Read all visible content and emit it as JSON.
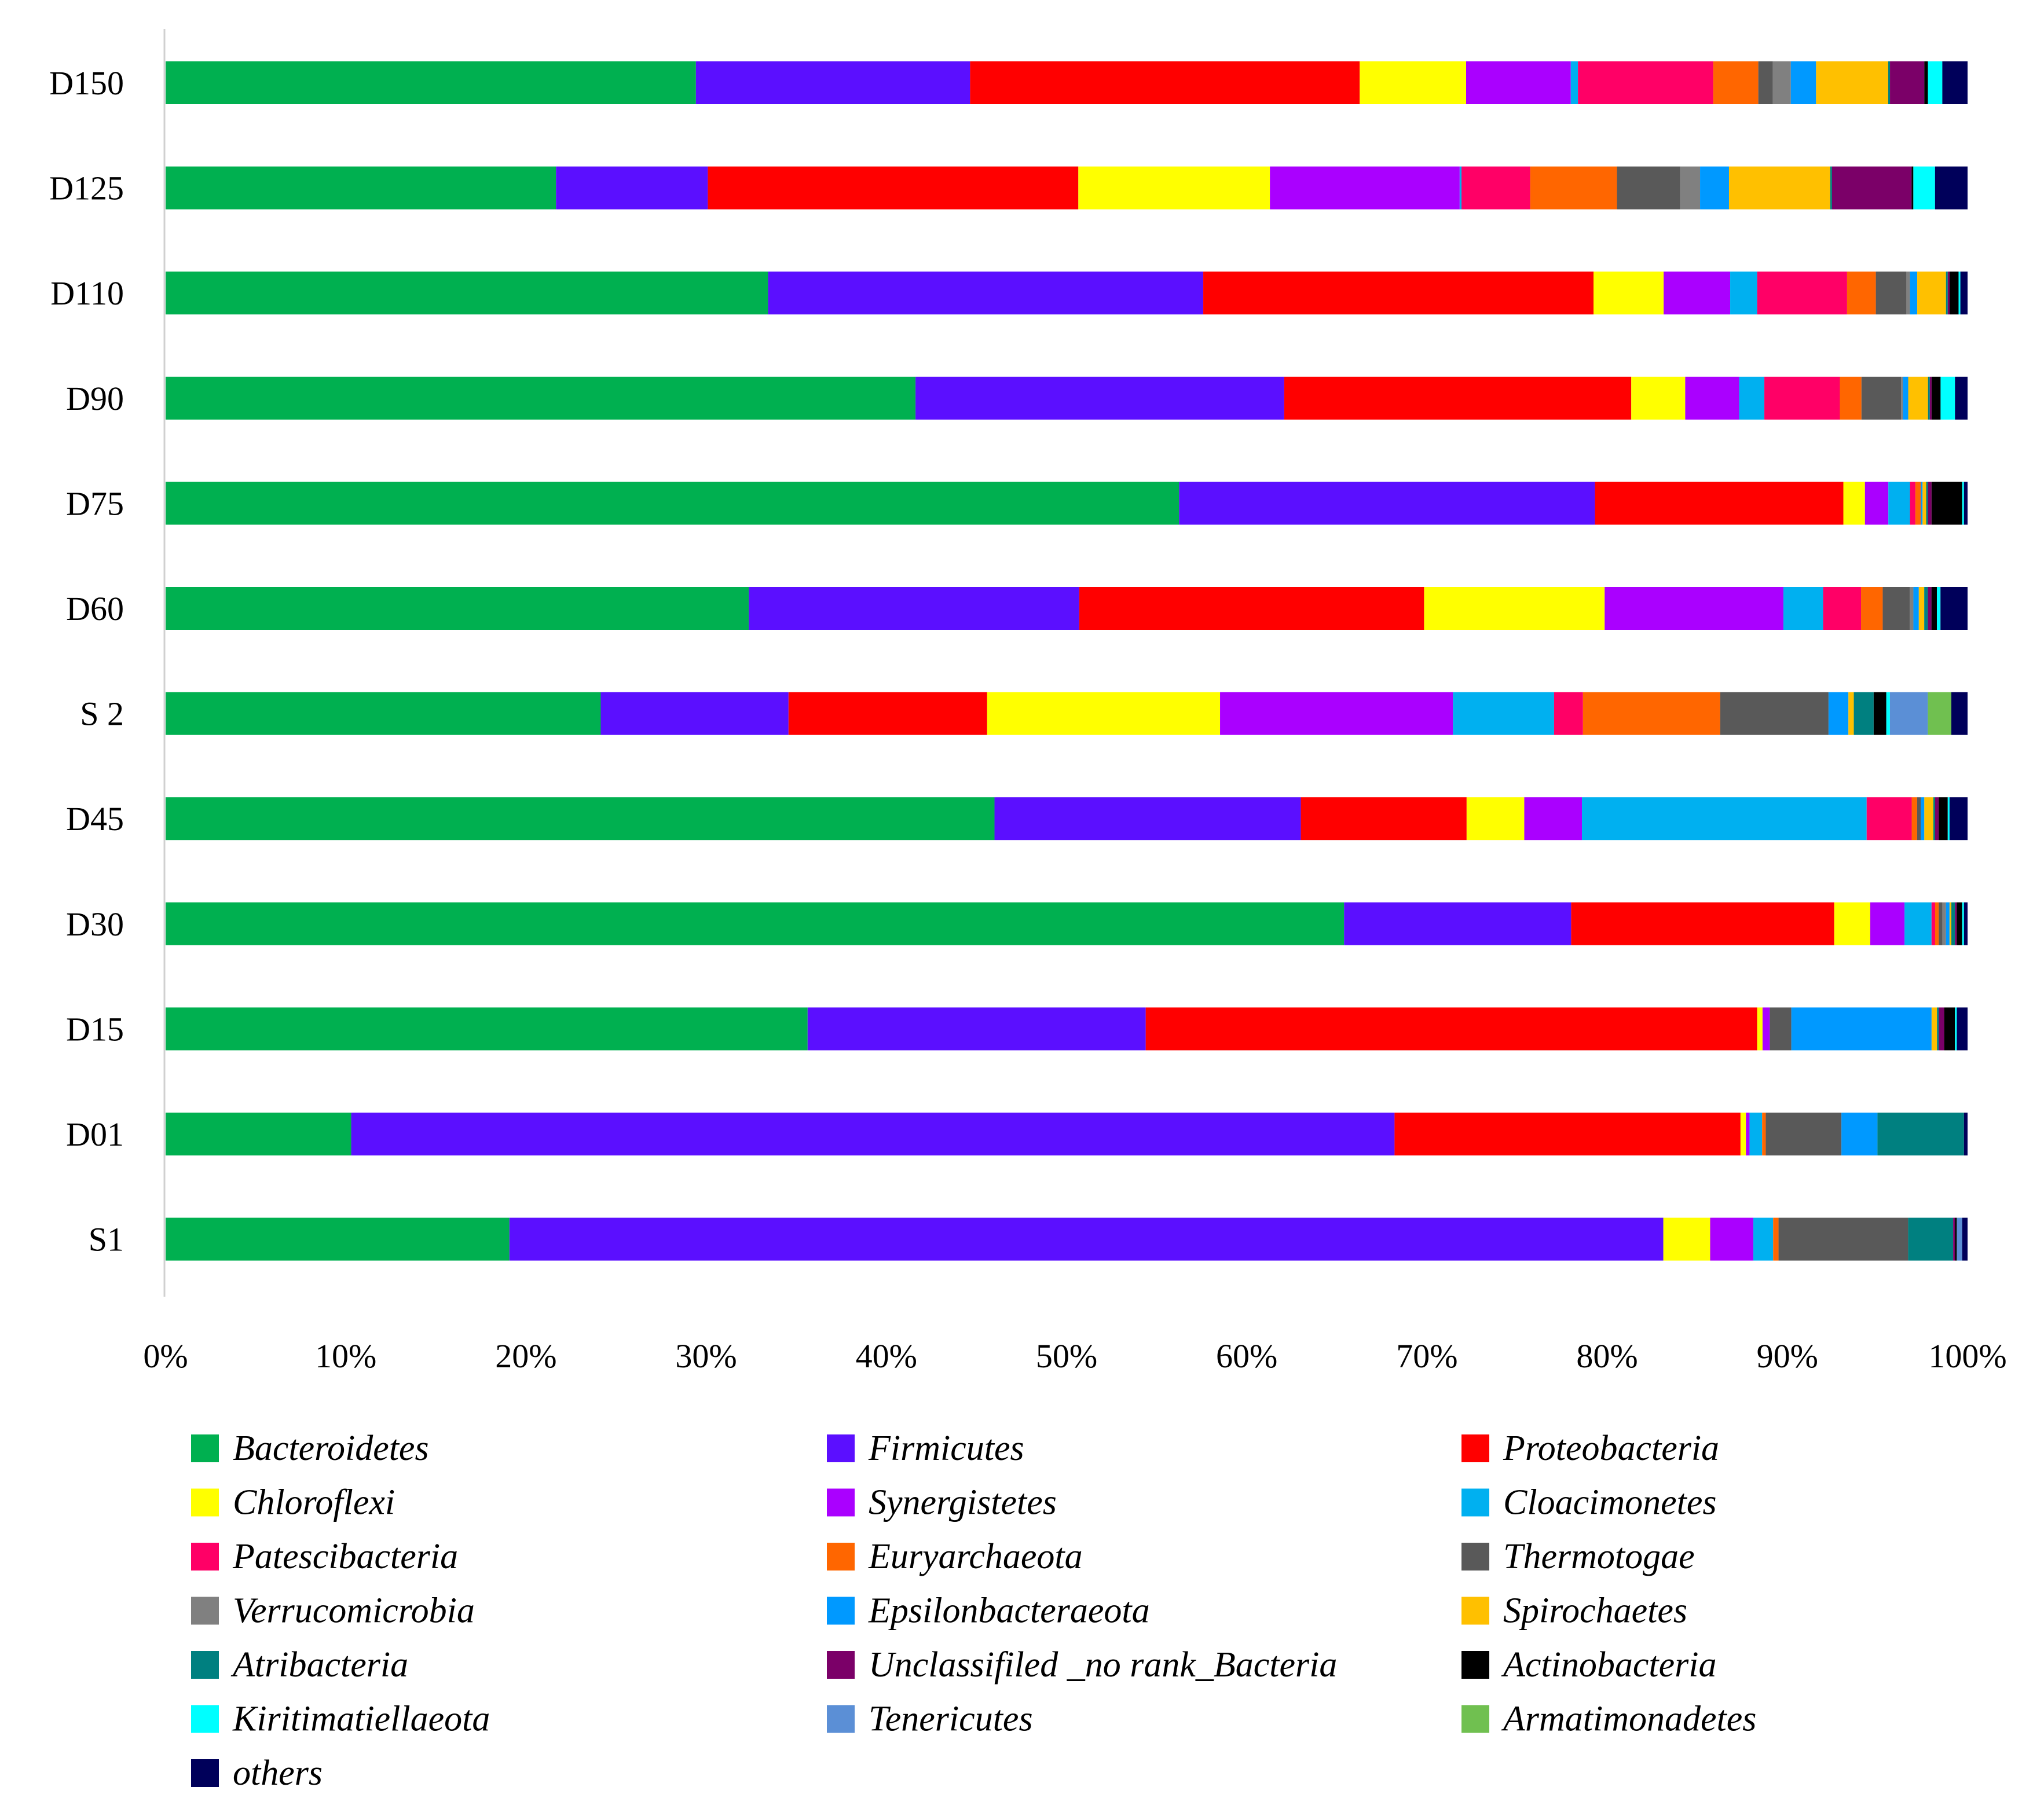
{
  "chart_data": {
    "type": "bar",
    "orientation": "horizontal",
    "stacked": "percent",
    "title": "",
    "xlabel": "",
    "ylabel": "",
    "xlim": [
      0,
      100
    ],
    "x_ticks": [
      "0%",
      "10%",
      "20%",
      "30%",
      "40%",
      "50%",
      "60%",
      "70%",
      "80%",
      "90%",
      "100%"
    ],
    "grid": false,
    "legend_position": "bottom",
    "categories": [
      "D150",
      "D125",
      "D110",
      "D90",
      "D75",
      "D60",
      "S 2",
      "D45",
      "D30",
      "D15",
      "D01",
      "S1"
    ],
    "series": [
      {
        "name": "Bacteroidetes",
        "color": "#00b050",
        "values": [
          29.4,
          21.6,
          33.5,
          41.7,
          56.3,
          32.3,
          24.1,
          46.0,
          65.4,
          35.7,
          10.3,
          19.1
        ]
      },
      {
        "name": "Firmicutes",
        "color": "#5b0fff",
        "values": [
          15.2,
          8.4,
          24.2,
          20.5,
          23.1,
          18.3,
          10.4,
          17.0,
          12.6,
          18.8,
          57.9,
          64.1
        ]
      },
      {
        "name": "Proteobacteria",
        "color": "#ff0000",
        "values": [
          21.6,
          20.5,
          21.7,
          19.3,
          13.8,
          19.1,
          11.0,
          9.2,
          14.6,
          34.0,
          19.2,
          0
        ]
      },
      {
        "name": "Chloroflexi",
        "color": "#ffff00",
        "values": [
          5.9,
          10.6,
          3.9,
          3.0,
          1.2,
          10.0,
          12.9,
          3.2,
          2.0,
          0.3,
          0.3,
          2.6
        ]
      },
      {
        "name": "Synergistetes",
        "color": "#aa00ff",
        "values": [
          5.8,
          10.5,
          3.7,
          3.0,
          1.3,
          9.9,
          12.9,
          3.2,
          1.9,
          0.4,
          0.2,
          2.4
        ]
      },
      {
        "name": "Cloacimonetes",
        "color": "#00b0f0",
        "values": [
          0.4,
          0.1,
          1.5,
          1.4,
          1.2,
          2.2,
          5.6,
          15.8,
          1.5,
          0,
          0.7,
          1.1
        ]
      },
      {
        "name": "Patescibacteria",
        "color": "#ff0066",
        "values": [
          7.5,
          3.8,
          5.0,
          4.2,
          0.3,
          2.1,
          1.6,
          2.5,
          0.2,
          0,
          0,
          0
        ]
      },
      {
        "name": "Euryarchaeota",
        "color": "#ff6600",
        "values": [
          2.5,
          4.8,
          1.6,
          1.2,
          0.3,
          1.2,
          7.6,
          0.3,
          0.2,
          0,
          0.2,
          0.3
        ]
      },
      {
        "name": "Thermotogae",
        "color": "#595959",
        "values": [
          0.8,
          3.5,
          1.7,
          2.2,
          0,
          1.5,
          6.0,
          0.2,
          0.2,
          1.2,
          4.2,
          7.2
        ]
      },
      {
        "name": "Verrucomicrobia",
        "color": "#808080",
        "values": [
          1.0,
          1.1,
          0.2,
          0.1,
          0,
          0.2,
          0,
          0,
          0.2,
          0,
          0,
          0
        ]
      },
      {
        "name": "Epsilonbacteraeota",
        "color": "#0099ff",
        "values": [
          1.4,
          1.6,
          0.4,
          0.3,
          0.1,
          0.3,
          1.1,
          0.2,
          0.2,
          7.8,
          2.0,
          0
        ]
      },
      {
        "name": "Spirochaetes",
        "color": "#ffc000",
        "values": [
          4.0,
          5.6,
          1.6,
          1.1,
          0.2,
          0.3,
          0.3,
          0.5,
          0.1,
          0.3,
          0,
          0
        ]
      },
      {
        "name": "Atribacteria",
        "color": "#008080",
        "values": [
          0.1,
          0.1,
          0.1,
          0.1,
          0.1,
          0.2,
          1.1,
          0.1,
          0.2,
          0.1,
          4.8,
          2.5
        ]
      },
      {
        "name": "Unclassifiled _no rank_Bacteria",
        "color": "#7b0068",
        "values": [
          1.9,
          4.4,
          0.1,
          0.1,
          0.2,
          0.2,
          0,
          0.2,
          0.1,
          0.3,
          0,
          0.1
        ]
      },
      {
        "name": "Actinobacteria",
        "color": "#000000",
        "values": [
          0.2,
          0.1,
          0.5,
          0.5,
          1.7,
          0.3,
          0.7,
          0.5,
          0.3,
          0.6,
          0,
          0.1
        ]
      },
      {
        "name": "Kiritimatiellaeota",
        "color": "#00ffff",
        "values": [
          0.8,
          1.2,
          0.1,
          0.8,
          0.1,
          0.2,
          0.2,
          0.1,
          0.1,
          0.1,
          0,
          0
        ]
      },
      {
        "name": "Tenericutes",
        "color": "#5b8fd6",
        "values": [
          0,
          0,
          0,
          0,
          0,
          0,
          2.1,
          0,
          0,
          0,
          0,
          0.3
        ]
      },
      {
        "name": "Armatimonadetes",
        "color": "#70c050",
        "values": [
          0,
          0,
          0,
          0,
          0,
          0,
          1.3,
          0,
          0,
          0,
          0,
          0
        ]
      },
      {
        "name": "others",
        "color": "#00005a",
        "values": [
          1.4,
          1.8,
          0.4,
          0.7,
          0.2,
          1.5,
          0.9,
          1.0,
          0.2,
          0.6,
          0.2,
          0.3
        ]
      }
    ]
  }
}
